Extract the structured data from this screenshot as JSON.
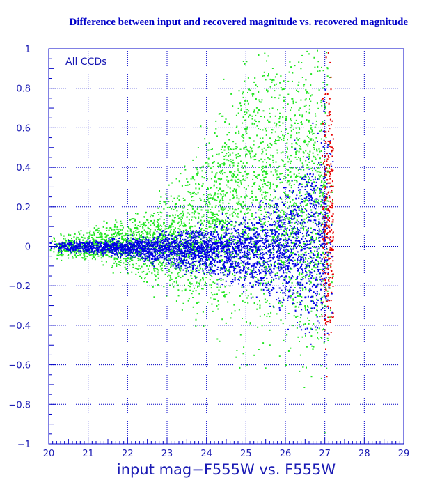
{
  "chart_data": {
    "type": "scatter",
    "title": "Difference between input and recovered magnitude vs. recovered magnitude",
    "xlabel": "input mag−F555W vs. F555W",
    "ylabel": "",
    "annotation": "All CCDs",
    "xlim": [
      20,
      29
    ],
    "ylim": [
      -1,
      1
    ],
    "xticks": [
      "20",
      "21",
      "22",
      "23",
      "24",
      "25",
      "26",
      "27",
      "28",
      "29"
    ],
    "yticks": [
      "1",
      "0.8",
      "0.6",
      "0.4",
      "0.2",
      "0",
      "−0.2",
      "−0.4",
      "−0.6",
      "−0.8",
      "−1"
    ],
    "grid": true,
    "colors": {
      "axis": "#0000c8",
      "grid": "#0000c8",
      "green": "#22e622",
      "blue": "#0000e6",
      "red": "#e60000"
    },
    "series": [
      {
        "color": "green",
        "description_points": [
          {
            "x": 20.0,
            "y_upper": 0.05,
            "y_lower": -0.05
          },
          {
            "x": 21.0,
            "y_upper": 0.08,
            "y_lower": -0.06
          },
          {
            "x": 22.0,
            "y_upper": 0.15,
            "y_lower": -0.12
          },
          {
            "x": 23.0,
            "y_upper": 0.25,
            "y_lower": -0.22
          },
          {
            "x": 24.0,
            "y_upper": 0.5,
            "y_lower": -0.3
          },
          {
            "x": 25.0,
            "y_upper": 0.9,
            "y_lower": -0.4
          },
          {
            "x": 26.0,
            "y_upper": 1.0,
            "y_lower": -0.48
          },
          {
            "x": 27.0,
            "y_upper": 1.0,
            "y_lower": -0.55
          }
        ]
      },
      {
        "color": "blue",
        "description_points": [
          {
            "x": 20.0,
            "y_upper": 0.02,
            "y_lower": -0.02
          },
          {
            "x": 21.0,
            "y_upper": 0.03,
            "y_lower": -0.03
          },
          {
            "x": 22.0,
            "y_upper": 0.04,
            "y_lower": -0.05
          },
          {
            "x": 23.0,
            "y_upper": 0.07,
            "y_lower": -0.09
          },
          {
            "x": 24.0,
            "y_upper": 0.1,
            "y_lower": -0.13
          },
          {
            "x": 25.0,
            "y_upper": 0.15,
            "y_lower": -0.2
          },
          {
            "x": 26.0,
            "y_upper": 0.3,
            "y_lower": -0.3
          },
          {
            "x": 27.0,
            "y_upper": 0.6,
            "y_lower": -0.5
          }
        ]
      },
      {
        "color": "red",
        "description_points": [
          {
            "x": 26.9,
            "y_upper": 0.8,
            "y_lower": -0.5
          },
          {
            "x": 27.2,
            "y_upper": 0.9,
            "y_lower": -0.5
          }
        ]
      }
    ]
  }
}
